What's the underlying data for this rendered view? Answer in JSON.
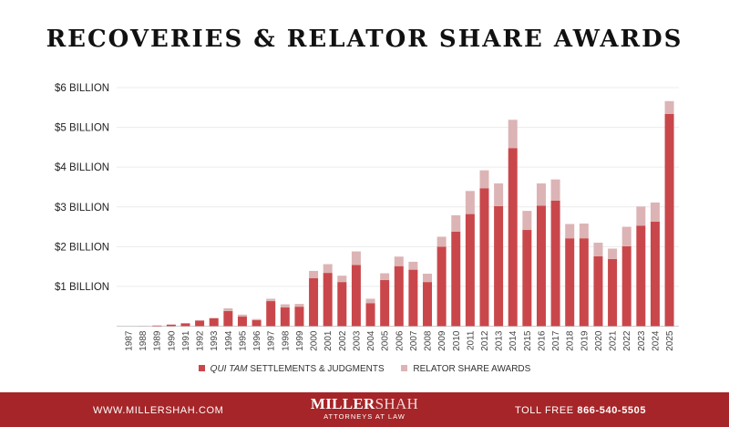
{
  "chart_data": {
    "type": "bar",
    "stacked": true,
    "title": "RECOVERIES & RELATOR SHARE AWARDS",
    "xlabel": "",
    "ylabel": "",
    "ylim": [
      0,
      6
    ],
    "yticks": [
      0,
      1,
      2,
      3,
      4,
      5,
      6
    ],
    "ytick_labels": [
      "",
      "$1 BILLION",
      "$2 BILLION",
      "$3 BILLION",
      "$4 BILLION",
      "$5 BILLION",
      "$6 BILLION"
    ],
    "grid": true,
    "legend_position": "bottom",
    "categories": [
      "1987",
      "1988",
      "1989",
      "1990",
      "1991",
      "1992",
      "1993",
      "1994",
      "1995",
      "1996",
      "1997",
      "1998",
      "1999",
      "2000",
      "2001",
      "2002",
      "2003",
      "2004",
      "2005",
      "2006",
      "2007",
      "2008",
      "2009",
      "2010",
      "2011",
      "2012",
      "2013",
      "2014",
      "2015",
      "2016",
      "2017",
      "2018",
      "2019",
      "2020",
      "2021",
      "2022",
      "2023",
      "2024",
      "2025"
    ],
    "series": [
      {
        "name_italic": "QUI TAM",
        "name_rest": " SETTLEMENTS & JUDGMENTS",
        "color": "#c9474b",
        "values": [
          0,
          0.002,
          0.015,
          0.04,
          0.07,
          0.14,
          0.2,
          0.38,
          0.24,
          0.15,
          0.63,
          0.47,
          0.49,
          1.21,
          1.34,
          1.11,
          1.54,
          0.58,
          1.16,
          1.51,
          1.42,
          1.11,
          2.0,
          2.38,
          2.82,
          3.47,
          3.02,
          4.48,
          2.42,
          3.03,
          3.16,
          2.21,
          2.21,
          1.76,
          1.69,
          2.01,
          2.53,
          2.63,
          5.34
        ]
      },
      {
        "name": "RELATOR SHARE AWARDS",
        "color": "#dcb4b5",
        "values": [
          0,
          0,
          0.005,
          0.005,
          0.005,
          0.01,
          0.01,
          0.07,
          0.05,
          0.03,
          0.06,
          0.08,
          0.07,
          0.18,
          0.22,
          0.16,
          0.34,
          0.11,
          0.17,
          0.24,
          0.2,
          0.21,
          0.25,
          0.41,
          0.58,
          0.45,
          0.57,
          0.71,
          0.48,
          0.56,
          0.53,
          0.36,
          0.37,
          0.34,
          0.26,
          0.49,
          0.48,
          0.48,
          0.32
        ]
      }
    ],
    "unit": "billion USD"
  },
  "footer": {
    "url": "WWW.MILLERSHAH.COM",
    "logo_miller": "MILLER",
    "logo_shah": "SHAH",
    "logo_tagline": "ATTORNEYS AT LAW",
    "toll_label": "TOLL FREE ",
    "toll_number": "866-540-5505"
  }
}
